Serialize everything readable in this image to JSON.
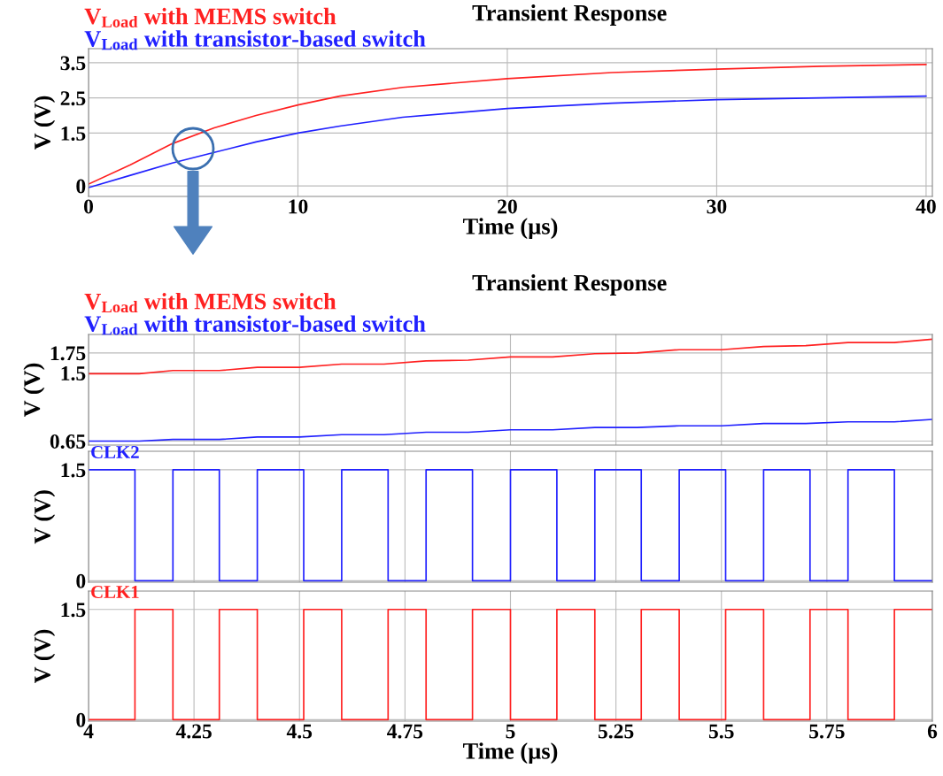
{
  "chart_data": [
    {
      "type": "line",
      "title": "Transient Response",
      "xlabel": "Time (µs)",
      "ylabel": "V (V)",
      "legend": "top left",
      "grid": true,
      "xlim": [
        0,
        40.3
      ],
      "ylim": [
        -0.3,
        3.9
      ],
      "xticks": [
        0,
        10,
        20,
        30,
        40
      ],
      "yticks": [
        0,
        1.5,
        2.5,
        3.5
      ],
      "series": [
        {
          "name": "V$_{Load}$ with MEMS switch",
          "color": "#ff2020",
          "x": [
            0,
            2,
            4,
            6,
            8,
            10,
            12,
            15,
            20,
            25,
            30,
            35,
            40
          ],
          "values": [
            0.05,
            0.6,
            1.2,
            1.65,
            2.0,
            2.3,
            2.55,
            2.8,
            3.05,
            3.22,
            3.32,
            3.4,
            3.45
          ]
        },
        {
          "name": "V$_{Load}$ with transistor-based switch",
          "color": "#2020ff",
          "x": [
            0,
            2,
            4,
            6,
            8,
            10,
            12,
            15,
            20,
            25,
            30,
            35,
            40
          ],
          "values": [
            -0.05,
            0.3,
            0.65,
            0.95,
            1.25,
            1.5,
            1.7,
            1.95,
            2.2,
            2.35,
            2.45,
            2.5,
            2.55
          ]
        }
      ]
    },
    {
      "type": "line",
      "title": "Transient Response",
      "ylabel": "V (V)",
      "legend": "top left",
      "grid": true,
      "tick_labels": "y",
      "xlim": [
        4,
        6
      ],
      "ylim": [
        0.6,
        1.98
      ],
      "xticks": [
        4,
        4.25,
        4.5,
        4.75,
        5,
        5.25,
        5.5,
        5.75,
        6
      ],
      "yticks": [
        0.65,
        1.5,
        1.75
      ],
      "series": [
        {
          "name": "V$_{Load}$ with MEMS switch",
          "color": "#ff2020",
          "x": [
            4.0,
            4.12,
            4.2,
            4.31,
            4.4,
            4.5,
            4.6,
            4.7,
            4.8,
            4.9,
            5.0,
            5.1,
            5.2,
            5.3,
            5.4,
            5.5,
            5.6,
            5.7,
            5.8,
            5.91,
            6.0
          ],
          "values": [
            1.49,
            1.49,
            1.53,
            1.53,
            1.57,
            1.57,
            1.61,
            1.61,
            1.65,
            1.66,
            1.7,
            1.7,
            1.74,
            1.75,
            1.79,
            1.79,
            1.83,
            1.84,
            1.88,
            1.88,
            1.92
          ]
        },
        {
          "name": "V$_{Load}$ with transistor-based switch",
          "color": "#2020ff",
          "x": [
            4.0,
            4.12,
            4.2,
            4.31,
            4.4,
            4.5,
            4.6,
            4.7,
            4.8,
            4.9,
            5.0,
            5.1,
            5.2,
            5.3,
            5.4,
            5.5,
            5.6,
            5.7,
            5.8,
            5.91,
            6.0
          ],
          "values": [
            0.65,
            0.65,
            0.67,
            0.67,
            0.7,
            0.7,
            0.73,
            0.73,
            0.76,
            0.76,
            0.79,
            0.79,
            0.82,
            0.82,
            0.84,
            0.84,
            0.87,
            0.87,
            0.89,
            0.89,
            0.92
          ]
        }
      ]
    },
    {
      "type": "step",
      "ylabel": "V (V)",
      "legend": "top left",
      "grid": true,
      "tick_labels": "y",
      "xlim": [
        4,
        6
      ],
      "ylim": [
        -0.02,
        1.75
      ],
      "xticks": [
        4,
        4.25,
        4.5,
        4.75,
        5,
        5.25,
        5.5,
        5.75,
        6
      ],
      "yticks": [
        0,
        1.5
      ],
      "series": [
        {
          "name": "CLK2",
          "color": "#2020ff",
          "x": [
            4.0,
            4.11,
            4.2,
            4.31,
            4.4,
            4.51,
            4.6,
            4.71,
            4.8,
            4.91,
            5.0,
            5.11,
            5.2,
            5.31,
            5.4,
            5.51,
            5.6,
            5.71,
            5.8,
            5.91,
            6.0
          ],
          "values": [
            1.5,
            0,
            1.5,
            0,
            1.5,
            0,
            1.5,
            0,
            1.5,
            0,
            1.5,
            0,
            1.5,
            0,
            1.5,
            0,
            1.5,
            0,
            1.5,
            0,
            0
          ]
        }
      ]
    },
    {
      "type": "step",
      "xlabel": "Time (µs)",
      "ylabel": "V (V)",
      "legend": "top left",
      "grid": true,
      "xlim": [
        4,
        6
      ],
      "ylim": [
        -0.02,
        1.75
      ],
      "xticks": [
        4,
        4.25,
        4.5,
        4.75,
        5,
        5.25,
        5.5,
        5.75,
        6
      ],
      "yticks": [
        0,
        1.5
      ],
      "series": [
        {
          "name": "CLK1",
          "color": "#ff2020",
          "x": [
            4.0,
            4.11,
            4.2,
            4.31,
            4.4,
            4.51,
            4.6,
            4.71,
            4.8,
            4.91,
            5.0,
            5.11,
            5.2,
            5.31,
            5.4,
            5.51,
            5.6,
            5.71,
            5.8,
            5.91,
            6.0
          ],
          "values": [
            0,
            1.5,
            0,
            1.5,
            0,
            1.5,
            0,
            1.5,
            0,
            1.5,
            0,
            1.5,
            0,
            1.5,
            0,
            1.5,
            0,
            1.5,
            0,
            1.5,
            1.5
          ]
        }
      ]
    }
  ]
}
